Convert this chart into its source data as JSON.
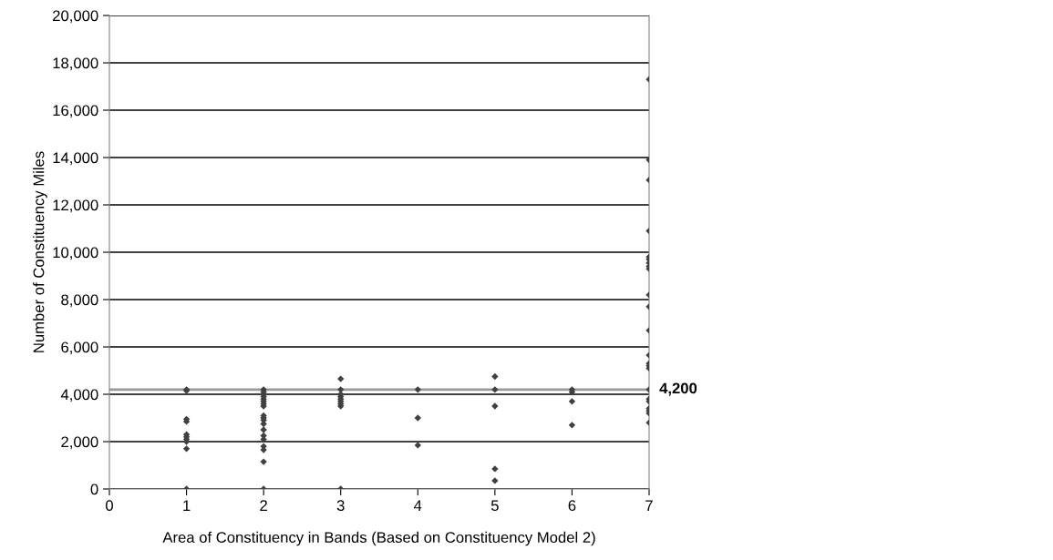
{
  "chart_data": {
    "type": "scatter",
    "xlabel": "Area of Constituency in Bands (Based on Constituency Model 2)",
    "ylabel": "Number of Constituency Miles",
    "series": [
      {
        "color": "#404040",
        "x": [
          1,
          1,
          1,
          1,
          1,
          1,
          1,
          1,
          1,
          1,
          2,
          2,
          2,
          2,
          2,
          2,
          2,
          2,
          2,
          2,
          2,
          2,
          2,
          2,
          2,
          2,
          2,
          2,
          2,
          3,
          3,
          3,
          3,
          3,
          3,
          3,
          3,
          3,
          4,
          4,
          4,
          5,
          5,
          5,
          5,
          5,
          6,
          6,
          6,
          6,
          7,
          7,
          7,
          7,
          7,
          7,
          7,
          7,
          7,
          7,
          7,
          7,
          7,
          7,
          7,
          7,
          7,
          7,
          7,
          7,
          7,
          7,
          7
        ],
        "values": [
          4200,
          4150,
          2950,
          2850,
          2300,
          2200,
          2100,
          2000,
          1700,
          0,
          4200,
          4100,
          4000,
          3900,
          3800,
          3700,
          3600,
          3500,
          3100,
          3000,
          2900,
          2750,
          2500,
          2250,
          2100,
          1800,
          1650,
          1150,
          0,
          4650,
          4200,
          4000,
          3900,
          3800,
          3700,
          3600,
          3500,
          0,
          4200,
          3000,
          1850,
          4750,
          4200,
          3500,
          850,
          350,
          4200,
          4100,
          3700,
          2700,
          17300,
          13900,
          13050,
          10900,
          9800,
          9700,
          9550,
          9400,
          9300,
          8200,
          7700,
          6700,
          5650,
          5300,
          5200,
          5100,
          4200,
          3800,
          3700,
          3400,
          3300,
          3200,
          2800
        ]
      }
    ],
    "marker": "diamond",
    "xlim": [
      0,
      7
    ],
    "xticks": [
      0,
      1,
      2,
      3,
      4,
      5,
      6,
      7
    ],
    "ylim": [
      0,
      20000
    ],
    "yticks": [
      {
        "value": 0,
        "label": "0"
      },
      {
        "value": 2000,
        "label": "2,000"
      },
      {
        "value": 4000,
        "label": "4,000"
      },
      {
        "value": 6000,
        "label": "6,000"
      },
      {
        "value": 8000,
        "label": "8,000"
      },
      {
        "value": 10000,
        "label": "10,000"
      },
      {
        "value": 12000,
        "label": "12,000"
      },
      {
        "value": 14000,
        "label": "14,000"
      },
      {
        "value": 16000,
        "label": "16,000"
      },
      {
        "value": 18000,
        "label": "18,000"
      },
      {
        "value": 20000,
        "label": "20,000"
      }
    ],
    "grid": "y",
    "ref_lines": [
      {
        "axis": "y",
        "value": 4200,
        "label": "4,200",
        "color": "#999999"
      }
    ]
  }
}
